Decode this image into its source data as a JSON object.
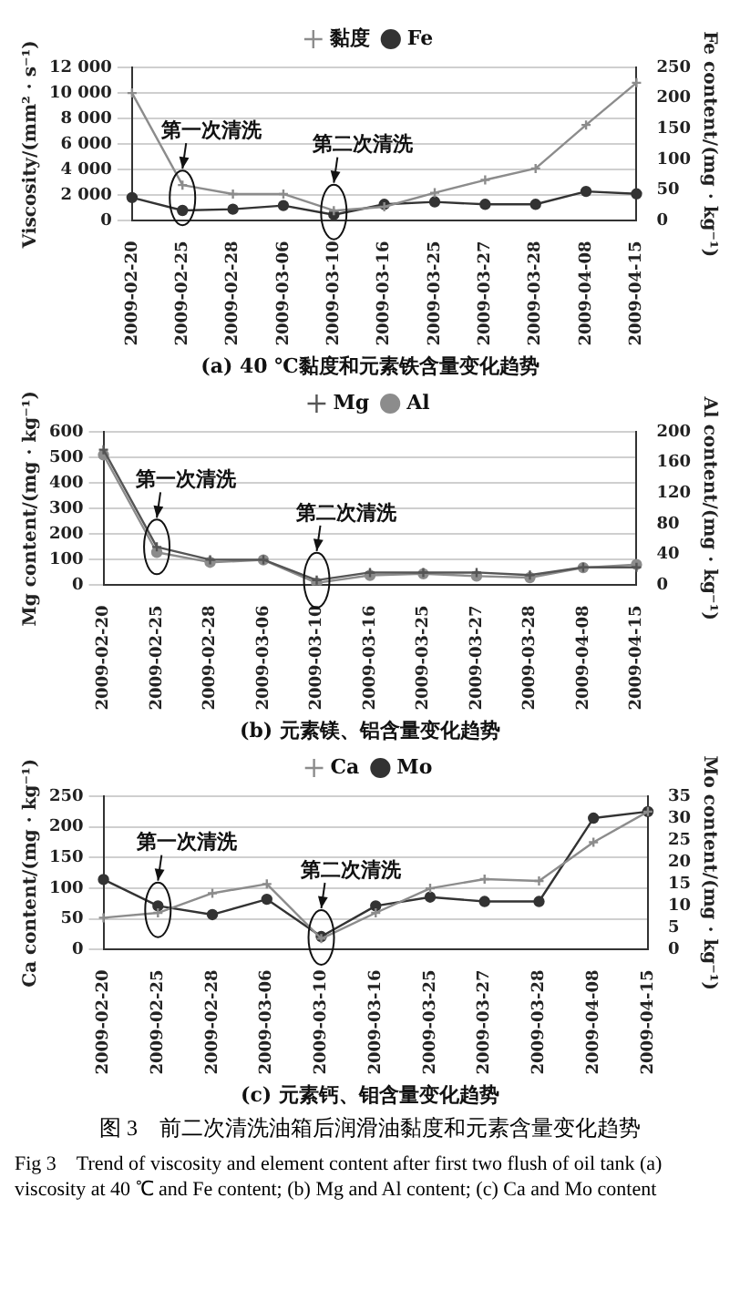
{
  "chart_data": [
    {
      "type": "line",
      "title": "(a) 40 ℃黏度和元素铁含量变化趋势",
      "ylabel": "Viscosity/(mm² · s⁻¹)",
      "y2label": "Fe content/(mg · kg⁻¹)",
      "categories": [
        "2009-02-20",
        "2009-02-25",
        "2009-02-28",
        "2009-03-06",
        "2009-03-10",
        "2009-03-16",
        "2009-03-25",
        "2009-03-27",
        "2009-03-28",
        "2009-04-08",
        "2009-04-15"
      ],
      "series": [
        {
          "name": "黏度",
          "color": "#8c8c8c",
          "marker": "cross",
          "values": [
            10000,
            2800,
            2100,
            2100,
            800,
            1100,
            2200,
            3200,
            4100,
            7500,
            10800
          ]
        },
        {
          "name": "Fe",
          "color": "#333333",
          "marker": "circle",
          "axis": "y2",
          "values": [
            38,
            17,
            19,
            25,
            10,
            27,
            31,
            27,
            27,
            48,
            44
          ]
        }
      ],
      "ylim": [
        0,
        12000
      ],
      "yticks": [
        0,
        {
          "value": 2000,
          "label": "2 000"
        },
        {
          "value": 4000,
          "label": "4 000"
        },
        {
          "value": 6000,
          "label": "6 000"
        },
        {
          "value": 8000,
          "label": "8 000"
        },
        {
          "value": 10000,
          "label": "10 000"
        },
        {
          "value": 12000,
          "label": "12 000"
        }
      ],
      "y2lim": [
        0,
        250
      ],
      "y2ticks": [
        0,
        50,
        100,
        150,
        200,
        250
      ],
      "grid": "y",
      "legend": "top",
      "annotations": [
        {
          "text": "第一次清洗",
          "x": "2009-02-25",
          "y": 1800
        },
        {
          "text": "第二次清洗",
          "x": "2009-03-10",
          "y": 700
        }
      ]
    },
    {
      "type": "line",
      "title": "(b) 元素镁、铝含量变化趋势",
      "ylabel": "Mg content/(mg · kg⁻¹)",
      "y2label": "Al content/(mg · kg⁻¹)",
      "categories": [
        "2009-02-20",
        "2009-02-25",
        "2009-02-28",
        "2009-03-06",
        "2009-03-10",
        "2009-03-16",
        "2009-03-25",
        "2009-03-27",
        "2009-03-28",
        "2009-04-08",
        "2009-04-15"
      ],
      "series": [
        {
          "name": "Mg",
          "color": "#555555",
          "marker": "cross",
          "values": [
            530,
            150,
            100,
            100,
            20,
            50,
            50,
            50,
            40,
            70,
            70
          ]
        },
        {
          "name": "Al",
          "color": "#8c8c8c",
          "marker": "circle",
          "axis": "y2",
          "values": [
            170,
            43,
            30,
            33,
            3,
            13,
            15,
            12,
            10,
            23,
            27
          ]
        }
      ],
      "ylim": [
        0,
        600
      ],
      "yticks": [
        0,
        100,
        200,
        300,
        400,
        500,
        600
      ],
      "y2lim": [
        0,
        200
      ],
      "y2ticks": [
        0,
        40,
        80,
        120,
        160,
        200
      ],
      "grid": "y",
      "legend": "top",
      "annotations": [
        {
          "text": "第一次清洗",
          "x": "2009-02-25",
          "y": 150
        },
        {
          "text": "第二次清洗",
          "x": "2009-03-10",
          "y": 20
        }
      ]
    },
    {
      "type": "line",
      "title": "(c) 元素钙、钼含量变化趋势",
      "ylabel": "Ca content/(mg · kg⁻¹)",
      "y2label": "Mo content/(mg · kg⁻¹)",
      "categories": [
        "2009-02-20",
        "2009-02-25",
        "2009-02-28",
        "2009-03-06",
        "2009-03-10",
        "2009-03-16",
        "2009-03-25",
        "2009-03-27",
        "2009-03-28",
        "2009-04-08",
        "2009-04-15"
      ],
      "series": [
        {
          "name": "Ca",
          "color": "#8c8c8c",
          "marker": "cross",
          "values": [
            52,
            60,
            92,
            107,
            18,
            60,
            100,
            115,
            112,
            175,
            225
          ]
        },
        {
          "name": "Mo",
          "color": "#333333",
          "marker": "circle",
          "axis": "y2",
          "values": [
            16,
            10,
            8,
            11.5,
            3,
            10,
            12,
            11,
            11,
            30,
            31.5
          ]
        }
      ],
      "ylim": [
        0,
        250
      ],
      "yticks": [
        0,
        50,
        100,
        150,
        200,
        250
      ],
      "y2lim": [
        0,
        35
      ],
      "y2ticks": [
        0,
        5,
        10,
        15,
        20,
        25,
        30,
        35
      ],
      "grid": "y",
      "legend": "top",
      "annotations": [
        {
          "text": "第一次清洗",
          "x": "2009-02-25",
          "y": 65
        },
        {
          "text": "第二次清洗",
          "x": "2009-03-10",
          "y": 20
        },
        "图 3　前二次清洗油箱后润滑油黏度和元素含量变化趋势",
        "Fig 3　Trend of viscosity and element content after first two flush of oil tank (a) viscosity at 40 ℃ and Fe content; (b) Mg and Al content; (c) Ca and Mo content"
      ]
    }
  ]
}
